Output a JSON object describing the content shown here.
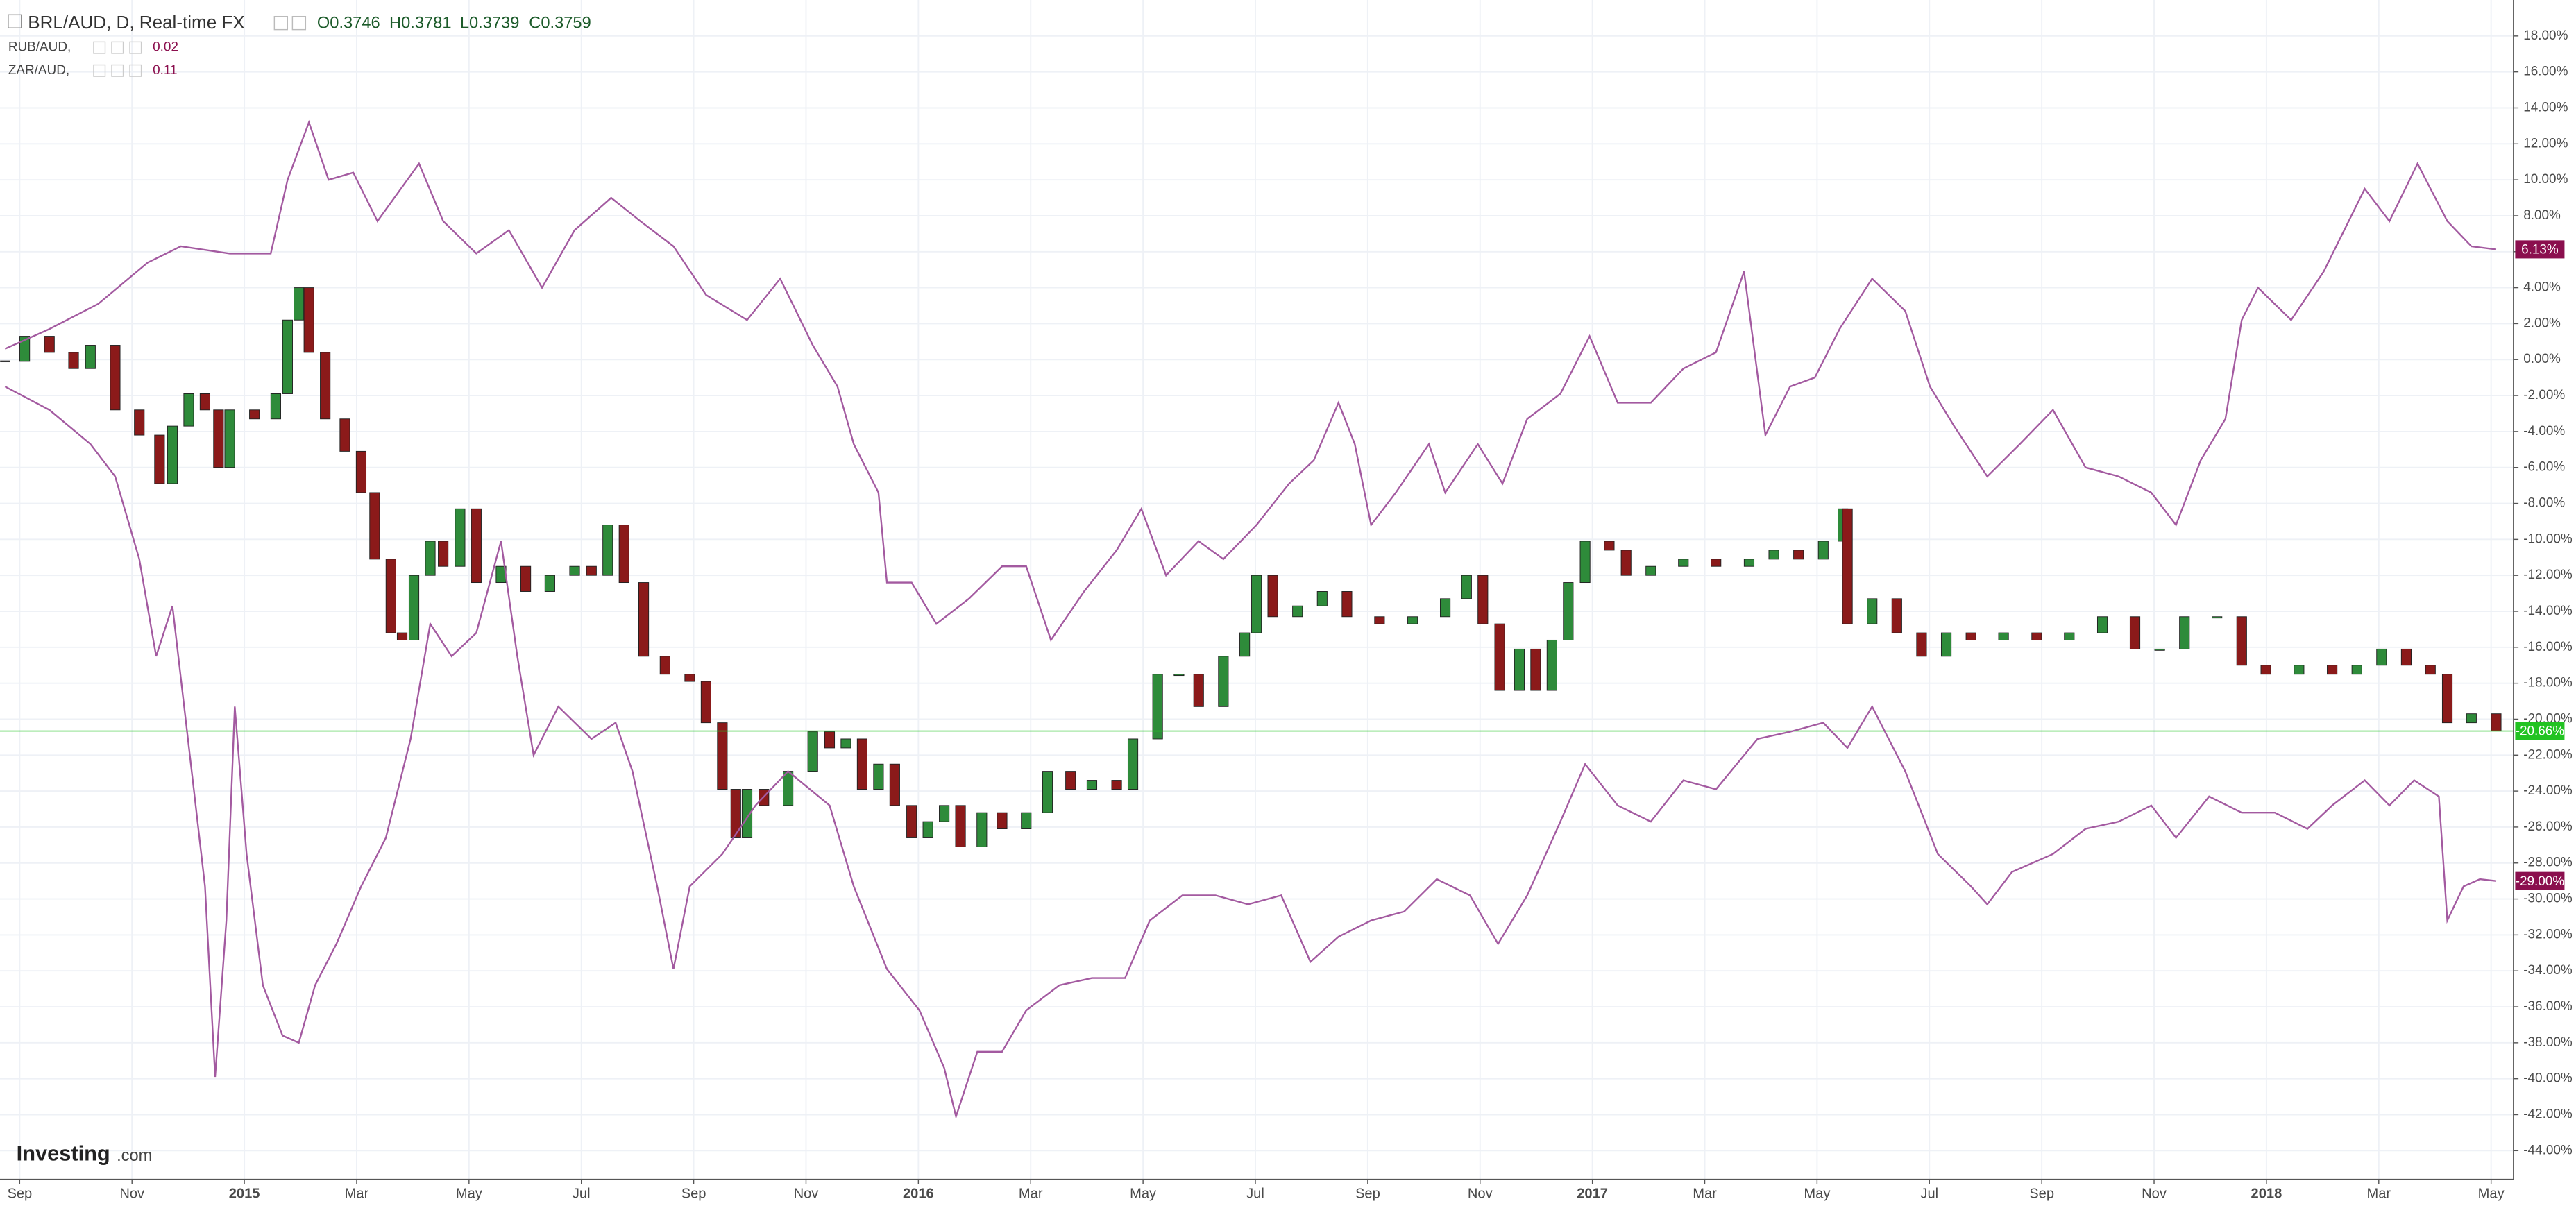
{
  "chart_data": {
    "type": "compare",
    "title": "BRL/AUD, D, Real-time FX",
    "ohlc": [
      "O0.3746",
      "H0.3781",
      "L0.3739",
      "C0.3759"
    ],
    "logo": {
      "name": "Investing",
      "suffix": ".com"
    },
    "xlim": [
      -0.35,
      44.4
    ],
    "ylim": [
      -45.6,
      20
    ],
    "grid": true,
    "xticks": [
      {
        "value": 0,
        "label": "Sep"
      },
      {
        "value": 2,
        "label": "Nov"
      },
      {
        "value": 4,
        "label": "2015"
      },
      {
        "value": 6,
        "label": "Mar"
      },
      {
        "value": 8,
        "label": "May"
      },
      {
        "value": 10,
        "label": "Jul"
      },
      {
        "value": 12,
        "label": "Sep"
      },
      {
        "value": 14,
        "label": "Nov"
      },
      {
        "value": 16,
        "label": "2016"
      },
      {
        "value": 18,
        "label": "Mar"
      },
      {
        "value": 20,
        "label": "May"
      },
      {
        "value": 22,
        "label": "Jul"
      },
      {
        "value": 24,
        "label": "Sep"
      },
      {
        "value": 26,
        "label": "Nov"
      },
      {
        "value": 28,
        "label": "2017"
      },
      {
        "value": 30,
        "label": "Mar"
      },
      {
        "value": 32,
        "label": "May"
      },
      {
        "value": 34,
        "label": "Jul"
      },
      {
        "value": 36,
        "label": "Sep"
      },
      {
        "value": 38,
        "label": "Nov"
      },
      {
        "value": 40,
        "label": "2018"
      },
      {
        "value": 42,
        "label": "Mar"
      },
      {
        "value": 44,
        "label": "May"
      }
    ],
    "yticks": [
      {
        "value": 18,
        "label": "18.00%"
      },
      {
        "value": 16,
        "label": "16.00%"
      },
      {
        "value": 14,
        "label": "14.00%"
      },
      {
        "value": 12,
        "label": "12.00%"
      },
      {
        "value": 10,
        "label": "10.00%"
      },
      {
        "value": 8,
        "label": "8.00%"
      },
      {
        "value": 6,
        "label": "6.00%"
      },
      {
        "value": 4,
        "label": "4.00%"
      },
      {
        "value": 2,
        "label": "2.00%"
      },
      {
        "value": 0,
        "label": "0.00%"
      },
      {
        "value": -2,
        "label": "-2.00%"
      },
      {
        "value": -4,
        "label": "-4.00%"
      },
      {
        "value": -6,
        "label": "-6.00%"
      },
      {
        "value": -8,
        "label": "-8.00%"
      },
      {
        "value": -10,
        "label": "-10.00%"
      },
      {
        "value": -12,
        "label": "-12.00%"
      },
      {
        "value": -14,
        "label": "-14.00%"
      },
      {
        "value": -16,
        "label": "-16.00%"
      },
      {
        "value": -18,
        "label": "-18.00%"
      },
      {
        "value": -20,
        "label": "-20.00%"
      },
      {
        "value": -22,
        "label": "-22.00%"
      },
      {
        "value": -24,
        "label": "-24.00%"
      },
      {
        "value": -26,
        "label": "-26.00%"
      },
      {
        "value": -28,
        "label": "-28.00%"
      },
      {
        "value": -30,
        "label": "-30.00%"
      },
      {
        "value": -32,
        "label": "-32.00%"
      },
      {
        "value": -34,
        "label": "-34.00%"
      },
      {
        "value": -36,
        "label": "-36.00%"
      },
      {
        "value": -38,
        "label": "-38.00%"
      },
      {
        "value": -40,
        "label": "-40.00%"
      },
      {
        "value": -42,
        "label": "-42.00%"
      },
      {
        "value": -44,
        "label": "-44.00%"
      }
    ],
    "series": [
      {
        "name": "BRL/AUD",
        "style": "candle",
        "color_up": "#2e8b3a",
        "color_down": "#8b1a1a",
        "color": "#22c322",
        "last_label": "-20.66%",
        "x": [
          -0.26,
          0.09,
          0.53,
          0.96,
          1.26,
          1.7,
          2.13,
          2.49,
          2.72,
          3.01,
          3.3,
          3.54,
          3.74,
          4.18,
          4.56,
          4.77,
          4.97,
          5.15,
          5.44,
          5.79,
          6.08,
          6.32,
          6.61,
          6.81,
          7.02,
          7.31,
          7.54,
          7.84,
          8.13,
          8.57,
          9.01,
          9.44,
          9.88,
          10.18,
          10.47,
          10.76,
          11.11,
          11.49,
          11.93,
          12.22,
          12.51,
          12.75,
          12.95,
          13.25,
          13.68,
          14.12,
          14.42,
          14.71,
          15.0,
          15.29,
          15.58,
          15.88,
          16.17,
          16.46,
          16.75,
          17.13,
          17.49,
          17.92,
          18.3,
          18.71,
          19.09,
          19.53,
          19.82,
          20.26,
          20.64,
          20.99,
          21.43,
          21.81,
          22.02,
          22.31,
          22.75,
          23.19,
          23.63,
          24.21,
          24.8,
          25.38,
          25.76,
          26.05,
          26.35,
          26.7,
          26.99,
          27.28,
          27.57,
          27.87,
          28.3,
          28.6,
          29.04,
          29.62,
          30.2,
          30.79,
          31.23,
          31.67,
          32.11,
          32.46,
          32.54,
          32.98,
          33.42,
          33.86,
          34.3,
          34.74,
          35.32,
          35.91,
          36.49,
          37.08,
          37.66,
          38.1,
          38.54,
          39.12,
          39.56,
          39.99,
          40.58,
          41.17,
          41.61,
          42.05,
          42.49,
          42.92,
          43.22,
          43.65,
          44.09
        ],
        "values": [
          -0.1,
          1.3,
          0.4,
          -0.5,
          0.8,
          -2.8,
          -4.2,
          -6.9,
          -3.7,
          -1.9,
          -2.8,
          -6.0,
          -2.8,
          -3.3,
          -1.9,
          2.2,
          4.0,
          0.4,
          -3.3,
          -5.1,
          -7.4,
          -11.1,
          -15.2,
          -15.6,
          -12.0,
          -10.1,
          -11.5,
          -8.3,
          -12.4,
          -11.5,
          -12.9,
          -12.0,
          -11.5,
          -12.0,
          -9.2,
          -12.4,
          -16.5,
          -17.5,
          -17.9,
          -20.2,
          -23.9,
          -26.6,
          -23.9,
          -24.8,
          -22.9,
          -20.7,
          -21.6,
          -21.1,
          -23.9,
          -22.5,
          -24.8,
          -26.6,
          -25.7,
          -24.8,
          -27.1,
          -25.2,
          -26.1,
          -25.2,
          -22.9,
          -23.9,
          -23.4,
          -23.9,
          -21.1,
          -17.5,
          -17.5,
          -19.3,
          -16.5,
          -15.2,
          -12.0,
          -14.3,
          -13.7,
          -12.9,
          -14.3,
          -14.7,
          -14.3,
          -13.3,
          -12.0,
          -14.7,
          -18.4,
          -16.1,
          -18.4,
          -15.6,
          -12.4,
          -10.1,
          -10.6,
          -12.0,
          -11.5,
          -11.1,
          -11.5,
          -11.1,
          -10.6,
          -11.1,
          -10.1,
          -8.3,
          -14.7,
          -13.3,
          -15.2,
          -16.5,
          -15.2,
          -15.6,
          -15.2,
          -15.6,
          -15.2,
          -14.3,
          -16.1,
          -16.1,
          -14.3,
          -14.3,
          -17.0,
          -17.5,
          -17.0,
          -17.5,
          -17.0,
          -16.1,
          -17.0,
          -17.5,
          -20.2,
          -19.7,
          -20.66
        ]
      },
      {
        "name": "RUB/AUD,",
        "style": "line",
        "color": "#a35aa0",
        "label_color": "#8b0f4e",
        "legend_value": "0.02",
        "last_label": "-29.00%",
        "x": [
          -0.26,
          0.53,
          1.26,
          1.7,
          2.13,
          2.43,
          2.72,
          3.1,
          3.3,
          3.48,
          3.68,
          3.83,
          4.04,
          4.33,
          4.68,
          4.97,
          5.26,
          5.64,
          6.08,
          6.52,
          6.96,
          7.31,
          7.69,
          8.13,
          8.57,
          8.86,
          9.15,
          9.59,
          10.18,
          10.61,
          10.91,
          11.35,
          11.64,
          11.93,
          12.51,
          13.1,
          13.68,
          14.42,
          14.85,
          15.44,
          16.02,
          16.46,
          16.67,
          17.05,
          17.49,
          17.92,
          18.51,
          19.09,
          19.68,
          20.12,
          20.7,
          21.29,
          21.87,
          22.46,
          22.98,
          23.48,
          24.06,
          24.65,
          25.23,
          25.82,
          26.32,
          26.84,
          27.43,
          27.87,
          28.45,
          29.04,
          29.62,
          30.2,
          30.94,
          31.52,
          32.11,
          32.54,
          32.98,
          33.57,
          34.15,
          34.74,
          35.03,
          35.47,
          36.2,
          36.78,
          37.37,
          37.95,
          38.39,
          38.98,
          39.56,
          40.15,
          40.73,
          41.17,
          41.75,
          42.19,
          42.63,
          43.07,
          43.22,
          43.51,
          43.8,
          44.09
        ],
        "values": [
          -1.5,
          -2.8,
          -4.7,
          -6.5,
          -11.1,
          -16.5,
          -13.7,
          -23.9,
          -29.3,
          -39.9,
          -31.2,
          -19.3,
          -27.5,
          -34.8,
          -37.6,
          -38.0,
          -34.8,
          -32.5,
          -29.3,
          -26.6,
          -21.1,
          -14.7,
          -16.5,
          -15.2,
          -10.1,
          -16.5,
          -22.0,
          -19.3,
          -21.1,
          -20.2,
          -22.9,
          -29.3,
          -33.9,
          -29.3,
          -27.5,
          -24.8,
          -22.9,
          -24.8,
          -29.3,
          -33.9,
          -36.2,
          -39.4,
          -42.1,
          -38.5,
          -38.5,
          -36.2,
          -34.8,
          -34.4,
          -34.4,
          -31.2,
          -29.8,
          -29.8,
          -30.3,
          -29.8,
          -33.5,
          -32.1,
          -31.2,
          -30.7,
          -28.9,
          -29.8,
          -32.5,
          -29.8,
          -25.7,
          -22.5,
          -24.8,
          -25.7,
          -23.4,
          -23.9,
          -21.1,
          -20.7,
          -20.2,
          -21.6,
          -19.3,
          -22.9,
          -27.5,
          -29.3,
          -30.3,
          -28.5,
          -27.5,
          -26.1,
          -25.7,
          -24.8,
          -26.6,
          -24.3,
          -25.2,
          -25.2,
          -26.1,
          -24.8,
          -23.4,
          -24.8,
          -23.4,
          -24.3,
          -31.2,
          -29.3,
          -28.9,
          -29.0
        ]
      },
      {
        "name": "ZAR/AUD,",
        "style": "line",
        "color": "#a35aa0",
        "label_color": "#8b0f4e",
        "legend_value": "0.11",
        "last_label": "6.13%",
        "x": [
          -0.26,
          0.53,
          1.4,
          2.28,
          2.87,
          3.74,
          4.47,
          4.77,
          5.15,
          5.5,
          5.94,
          6.37,
          7.11,
          7.54,
          8.13,
          8.71,
          9.3,
          9.88,
          10.53,
          11.05,
          11.64,
          12.22,
          12.95,
          13.54,
          14.12,
          14.56,
          14.85,
          15.29,
          15.44,
          15.88,
          16.32,
          16.9,
          17.49,
          17.92,
          18.36,
          18.95,
          19.53,
          19.97,
          20.41,
          20.99,
          21.43,
          22.02,
          22.6,
          23.04,
          23.48,
          23.77,
          24.06,
          24.5,
          25.09,
          25.38,
          25.96,
          26.4,
          26.84,
          27.43,
          27.95,
          28.45,
          29.04,
          29.62,
          30.2,
          30.7,
          31.08,
          31.52,
          31.96,
          32.4,
          32.98,
          33.57,
          34.01,
          34.44,
          35.03,
          35.61,
          36.2,
          36.78,
          37.37,
          37.95,
          38.39,
          38.83,
          39.27,
          39.56,
          39.85,
          40.44,
          41.02,
          41.75,
          42.19,
          42.69,
          43.22,
          43.65,
          44.09
        ],
        "values": [
          0.6,
          1.7,
          3.1,
          5.4,
          6.3,
          5.9,
          5.9,
          10.0,
          13.2,
          10.0,
          10.4,
          7.7,
          10.9,
          7.7,
          5.9,
          7.2,
          4.0,
          7.2,
          9.0,
          7.7,
          6.3,
          3.6,
          2.2,
          4.5,
          0.8,
          -1.5,
          -4.7,
          -7.4,
          -12.4,
          -12.4,
          -14.7,
          -13.3,
          -11.5,
          -11.5,
          -15.6,
          -12.9,
          -10.6,
          -8.3,
          -12.0,
          -10.1,
          -11.1,
          -9.2,
          -6.9,
          -5.6,
          -2.4,
          -4.7,
          -9.2,
          -7.4,
          -4.7,
          -7.4,
          -4.7,
          -6.9,
          -3.3,
          -1.9,
          1.3,
          -2.4,
          -2.4,
          -0.5,
          0.4,
          4.9,
          -4.2,
          -1.5,
          -1.0,
          1.7,
          4.5,
          2.7,
          -1.5,
          -3.7,
          -6.5,
          -4.7,
          -2.8,
          -6.0,
          -6.5,
          -7.4,
          -9.2,
          -5.6,
          -3.3,
          2.2,
          4.0,
          2.2,
          4.9,
          9.5,
          7.7,
          10.9,
          7.7,
          6.3,
          6.13
        ]
      }
    ]
  }
}
